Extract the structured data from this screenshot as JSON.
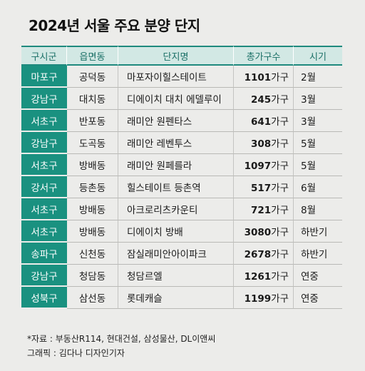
{
  "title": "2024년 서울 주요 분양 단지",
  "table": {
    "headers": [
      "구시군",
      "읍면동",
      "단지명",
      "총가구수",
      "시기"
    ],
    "unit_suffix": "가구",
    "rows": [
      {
        "district": "마포구",
        "town": "공덕동",
        "complex": "마포자이힐스테이트",
        "units": "1101",
        "timing": "2월"
      },
      {
        "district": "강남구",
        "town": "대치동",
        "complex": "디에이치 대치 에델루이",
        "units": "245",
        "timing": "3월"
      },
      {
        "district": "서초구",
        "town": "반포동",
        "complex": "래미안 원펜타스",
        "units": "641",
        "timing": "3월"
      },
      {
        "district": "강남구",
        "town": "도곡동",
        "complex": "래미안 레벤투스",
        "units": "308",
        "timing": "5월"
      },
      {
        "district": "서초구",
        "town": "방배동",
        "complex": "래미안 원페를라",
        "units": "1097",
        "timing": "5월"
      },
      {
        "district": "강서구",
        "town": "등촌동",
        "complex": "힐스테이트 등촌역",
        "units": "517",
        "timing": "6월"
      },
      {
        "district": "서초구",
        "town": "방배동",
        "complex": "아크로리츠카운티",
        "units": "721",
        "timing": "8월"
      },
      {
        "district": "서초구",
        "town": "방배동",
        "complex": "디에이치 방배",
        "units": "3080",
        "timing": "하반기"
      },
      {
        "district": "송파구",
        "town": "신천동",
        "complex": "잠실래미안아이파크",
        "units": "2678",
        "timing": "하반기"
      },
      {
        "district": "강남구",
        "town": "청담동",
        "complex": "청담르엘",
        "units": "1261",
        "timing": "연중"
      },
      {
        "district": "성북구",
        "town": "삼선동",
        "complex": "롯데캐슬",
        "units": "1199",
        "timing": "연중"
      }
    ]
  },
  "source": "*자료 : 부동산R114, 현대건설, 삼성물산, DL이앤씨",
  "graphic": "그래픽 : 김다나 디자인기자",
  "colors": {
    "district_bg": "#1a9180",
    "header_bg": "#d2e8e4",
    "header_text": "#1a6f66",
    "page_bg": "#ececea"
  }
}
